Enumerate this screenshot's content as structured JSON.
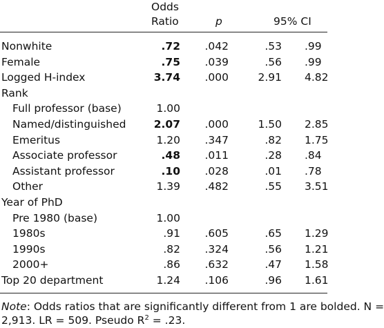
{
  "header": {
    "odds_line1": "Odds",
    "odds_line2": "Ratio",
    "p": "p",
    "ci": "95% CI"
  },
  "rows": [
    {
      "label": "Nonwhite",
      "odds": ".72",
      "bold": true,
      "p": ".042",
      "ci_low": ".53",
      "ci_high": ".99"
    },
    {
      "label": "Female",
      "odds": ".75",
      "bold": true,
      "p": ".039",
      "ci_low": ".56",
      "ci_high": ".99"
    },
    {
      "label": "Logged H-index",
      "odds": "3.74",
      "bold": true,
      "p": ".000",
      "ci_low": "2.91",
      "ci_high": "4.82"
    },
    {
      "label": "Rank",
      "odds": "",
      "bold": false,
      "p": "",
      "ci_low": "",
      "ci_high": ""
    },
    {
      "label": "Full professor (base)",
      "indent": true,
      "odds": "1.00",
      "bold": false,
      "p": "",
      "ci_low": "",
      "ci_high": ""
    },
    {
      "label": "Named/distinguished",
      "indent": true,
      "odds": "2.07",
      "bold": true,
      "p": ".000",
      "ci_low": "1.50",
      "ci_high": "2.85"
    },
    {
      "label": "Emeritus",
      "indent": true,
      "odds": "1.20",
      "bold": false,
      "p": ".347",
      "ci_low": ".82",
      "ci_high": "1.75"
    },
    {
      "label": "Associate professor",
      "indent": true,
      "odds": ".48",
      "bold": true,
      "p": ".011",
      "ci_low": ".28",
      "ci_high": ".84"
    },
    {
      "label": "Assistant professor",
      "indent": true,
      "odds": ".10",
      "bold": true,
      "p": ".028",
      "ci_low": ".01",
      "ci_high": ".78"
    },
    {
      "label": "Other",
      "indent": true,
      "odds": "1.39",
      "bold": false,
      "p": ".482",
      "ci_low": ".55",
      "ci_high": "3.51"
    },
    {
      "label": "Year of PhD",
      "odds": "",
      "bold": false,
      "p": "",
      "ci_low": "",
      "ci_high": ""
    },
    {
      "label": "Pre 1980 (base)",
      "indent": true,
      "odds": "1.00",
      "bold": false,
      "p": "",
      "ci_low": "",
      "ci_high": ""
    },
    {
      "label": "1980s",
      "indent": true,
      "odds": ".91",
      "bold": false,
      "p": ".605",
      "ci_low": ".65",
      "ci_high": "1.29"
    },
    {
      "label": "1990s",
      "indent": true,
      "odds": ".82",
      "bold": false,
      "p": ".324",
      "ci_low": ".56",
      "ci_high": "1.21"
    },
    {
      "label": "2000+",
      "indent": true,
      "odds": ".86",
      "bold": false,
      "p": ".632",
      "ci_low": ".47",
      "ci_high": "1.58"
    },
    {
      "label": "Top 20 department",
      "odds": "1.24",
      "bold": false,
      "p": ".106",
      "ci_low": ".96",
      "ci_high": "1.61"
    }
  ],
  "note": {
    "key": "Note",
    "text": ": Odds ratios that are significantly different from 1 are bolded. N =",
    "line2_pre": "2,913. LR = 509. Pseudo R",
    "line2_sup": "2",
    "line2_post": " = .23."
  }
}
